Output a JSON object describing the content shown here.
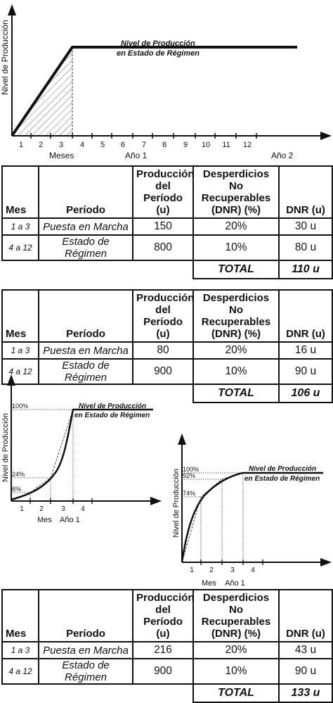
{
  "top_chart": {
    "ylabel": "Nivel de Producción",
    "annotation_line1": "Nivel de Producción",
    "annotation_line2": "en Estado de Régimen",
    "ticks": [
      "1",
      "2",
      "3",
      "4",
      "5",
      "6",
      "7",
      "8",
      "9",
      "10",
      "11",
      "12"
    ],
    "meses_label": "Meses",
    "ano1_label": "Año 1",
    "ano2_label": "Año 2"
  },
  "table1": {
    "headers": {
      "mes": "Mes",
      "periodo": "Período",
      "prod_l1": "Producción",
      "prod_l2": "del Período",
      "prod_l3": "(u)",
      "dnr_l1": "Desperdicios No",
      "dnr_l2": "Recuperables",
      "dnr_l3": "(DNR) (%)",
      "dnru": "DNR (u)"
    },
    "rows": [
      {
        "mes": "1 a 3",
        "periodo": "Puesta en Marcha",
        "produccion": "150",
        "pct": "20%",
        "dnr": "30 u"
      },
      {
        "mes": "4 a 12",
        "periodo": "Estado de Régimen",
        "produccion": "800",
        "pct": "10%",
        "dnr": "80 u"
      }
    ],
    "total_label": "TOTAL",
    "total_value": "110 u"
  },
  "table2": {
    "headers": {
      "mes": "Mes",
      "periodo": "Período",
      "prod_l1": "Producción",
      "prod_l2": "del Período",
      "prod_l3": "(u)",
      "dnr_l1": "Desperdicios No",
      "dnr_l2": "Recuperables",
      "dnr_l3": "(DNR) (%)",
      "dnru": "DNR (u)"
    },
    "rows": [
      {
        "mes": "1 a 3",
        "periodo": "Puesta en Marcha",
        "produccion": "80",
        "pct": "20%",
        "dnr": "16 u"
      },
      {
        "mes": "4 a 12",
        "periodo": "Estado de Régimen",
        "produccion": "900",
        "pct": "10%",
        "dnr": "90 u"
      }
    ],
    "total_label": "TOTAL",
    "total_value": "106 u"
  },
  "left_chart": {
    "ylabel": "Nivel de Producción",
    "annotation_line1": "Nivel de Producción",
    "annotation_line2": "en Estado de Régimen",
    "pct_100": "100%",
    "pct_24": "24%",
    "pct_6": "6%",
    "ticks": [
      "1",
      "2",
      "3",
      "4"
    ],
    "mes_label": "Mes",
    "ano_label": "Año 1"
  },
  "right_chart": {
    "ylabel": "Nivel de Producción",
    "annotation_line1": "Nivel de Producción",
    "annotation_line2": "en Estado de Régimen",
    "pct_100": "100%",
    "pct_92": "92%",
    "pct_74": "74%",
    "ticks": [
      "1",
      "2",
      "3",
      "4"
    ],
    "mes_label": "Mes",
    "ano_label": "Año 1"
  },
  "table3": {
    "headers": {
      "mes": "Mes",
      "periodo": "Período",
      "prod_l1": "Producción",
      "prod_l2": "del Período",
      "prod_l3": "(u)",
      "dnr_l1": "Desperdicios No",
      "dnr_l2": "Recuperables",
      "dnr_l3": "(DNR) (%)",
      "dnru": "DNR (u)"
    },
    "rows": [
      {
        "mes": "1 a 3",
        "periodo": "Puesta en Marcha",
        "produccion": "216",
        "pct": "20%",
        "dnr": "43 u"
      },
      {
        "mes": "4 a 12",
        "periodo": "Estado de Régimen",
        "produccion": "900",
        "pct": "10%",
        "dnr": "90 u"
      }
    ],
    "total_label": "TOTAL",
    "total_value": "133 u"
  }
}
